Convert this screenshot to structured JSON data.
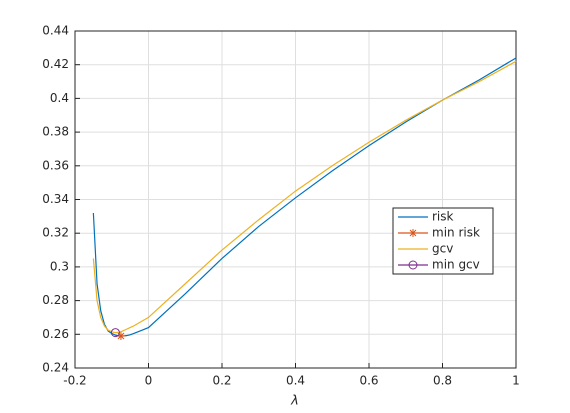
{
  "chart_data": {
    "type": "line",
    "x_label": "λ",
    "x": [
      -0.15,
      -0.14,
      -0.13,
      -0.12,
      -0.11,
      -0.1,
      -0.09,
      -0.08,
      -0.07,
      -0.06,
      -0.05,
      -0.04,
      -0.02,
      0,
      0.1,
      0.2,
      0.3,
      0.4,
      0.5,
      0.6,
      0.7,
      0.8,
      0.9,
      1.0
    ],
    "series": [
      {
        "name": "risk",
        "color": "#0072bd",
        "style": "line",
        "values": [
          0.332,
          0.29,
          0.274,
          0.266,
          0.262,
          0.2605,
          0.2595,
          0.259,
          0.259,
          0.2592,
          0.2597,
          0.2605,
          0.2622,
          0.264,
          0.284,
          0.305,
          0.324,
          0.341,
          0.357,
          0.372,
          0.386,
          0.399,
          0.411,
          0.424
        ]
      },
      {
        "name": "min risk",
        "color": "#d95319",
        "style": "star",
        "x": [
          -0.075
        ],
        "values": [
          0.259
        ]
      },
      {
        "name": "gcv",
        "color": "#edb120",
        "style": "line",
        "values": [
          0.305,
          0.28,
          0.27,
          0.265,
          0.2625,
          0.2615,
          0.261,
          0.2612,
          0.262,
          0.263,
          0.264,
          0.265,
          0.2675,
          0.27,
          0.29,
          0.31,
          0.328,
          0.345,
          0.36,
          0.374,
          0.387,
          0.399,
          0.41,
          0.422
        ]
      },
      {
        "name": "min gcv",
        "color": "#7e2f8e",
        "style": "circle",
        "x": [
          -0.09
        ],
        "values": [
          0.261
        ]
      }
    ],
    "xlim": [
      -0.2,
      1
    ],
    "xticks": [
      -0.2,
      0,
      0.2,
      0.4,
      0.6,
      0.8,
      1
    ],
    "ylim": [
      0.24,
      0.44
    ],
    "yticks": [
      0.24,
      0.26,
      0.28,
      0.3,
      0.32,
      0.34,
      0.36,
      0.38,
      0.4,
      0.42,
      0.44
    ],
    "grid": true,
    "legend": "right"
  }
}
